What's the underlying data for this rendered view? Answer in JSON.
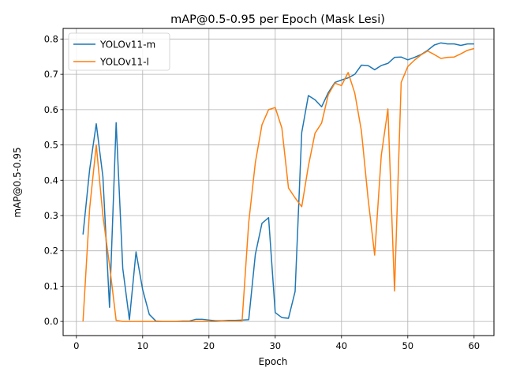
{
  "chart_data": {
    "type": "line",
    "title": "mAP@0.5-0.95 per Epoch (Mask Lesi)",
    "xlabel": "Epoch",
    "ylabel": "mAP@0.5-0.95",
    "xlim": [
      -2,
      63
    ],
    "ylim": [
      -0.04,
      0.83
    ],
    "xticks": [
      0,
      10,
      20,
      30,
      40,
      50,
      60
    ],
    "yticks": [
      0.0,
      0.1,
      0.2,
      0.3,
      0.4,
      0.5,
      0.6,
      0.7,
      0.8
    ],
    "xtick_labels": [
      "0",
      "10",
      "20",
      "30",
      "40",
      "50",
      "60"
    ],
    "ytick_labels": [
      "0.0",
      "0.1",
      "0.2",
      "0.3",
      "0.4",
      "0.5",
      "0.6",
      "0.7",
      "0.8"
    ],
    "grid": true,
    "legend_position": "top-left",
    "x": [
      1,
      2,
      3,
      4,
      5,
      6,
      7,
      8,
      9,
      10,
      11,
      12,
      13,
      14,
      15,
      16,
      17,
      18,
      19,
      20,
      21,
      22,
      23,
      24,
      25,
      26,
      27,
      28,
      29,
      30,
      31,
      32,
      33,
      34,
      35,
      36,
      37,
      38,
      39,
      40,
      41,
      42,
      43,
      44,
      45,
      46,
      47,
      48,
      49,
      50,
      51,
      52,
      53,
      54,
      55,
      56,
      57,
      58,
      59,
      60
    ],
    "series": [
      {
        "name": "YOLOv11-m",
        "color": "#1f77b4",
        "values": [
          0.246,
          0.43,
          0.56,
          0.41,
          0.04,
          0.563,
          0.15,
          0.005,
          0.197,
          0.09,
          0.02,
          0.001,
          0.0,
          0.0,
          0.0,
          0.001,
          0.001,
          0.006,
          0.006,
          0.004,
          0.002,
          0.002,
          0.003,
          0.003,
          0.004,
          0.005,
          0.19,
          0.278,
          0.294,
          0.025,
          0.011,
          0.009,
          0.085,
          0.535,
          0.64,
          0.628,
          0.608,
          0.648,
          0.677,
          0.684,
          0.69,
          0.7,
          0.726,
          0.725,
          0.713,
          0.725,
          0.731,
          0.748,
          0.749,
          0.741,
          0.748,
          0.756,
          0.768,
          0.783,
          0.789,
          0.786,
          0.786,
          0.782,
          0.786,
          0.786
        ]
      },
      {
        "name": "YOLOv11-l",
        "color": "#ff7f0e",
        "values": [
          0.0,
          0.32,
          0.5,
          0.3,
          0.16,
          0.003,
          0.0,
          0.0,
          0.0,
          0.0,
          0.0,
          0.0,
          0.0,
          0.0,
          0.0,
          0.0,
          0.0,
          0.0,
          0.0,
          0.0,
          0.0,
          0.001,
          0.001,
          0.001,
          0.001,
          0.28,
          0.45,
          0.557,
          0.6,
          0.606,
          0.548,
          0.378,
          0.35,
          0.325,
          0.44,
          0.533,
          0.562,
          0.642,
          0.675,
          0.668,
          0.705,
          0.647,
          0.54,
          0.35,
          0.188,
          0.47,
          0.602,
          0.086,
          0.677,
          0.722,
          0.74,
          0.755,
          0.766,
          0.756,
          0.745,
          0.748,
          0.749,
          0.758,
          0.768,
          0.773
        ]
      }
    ]
  }
}
